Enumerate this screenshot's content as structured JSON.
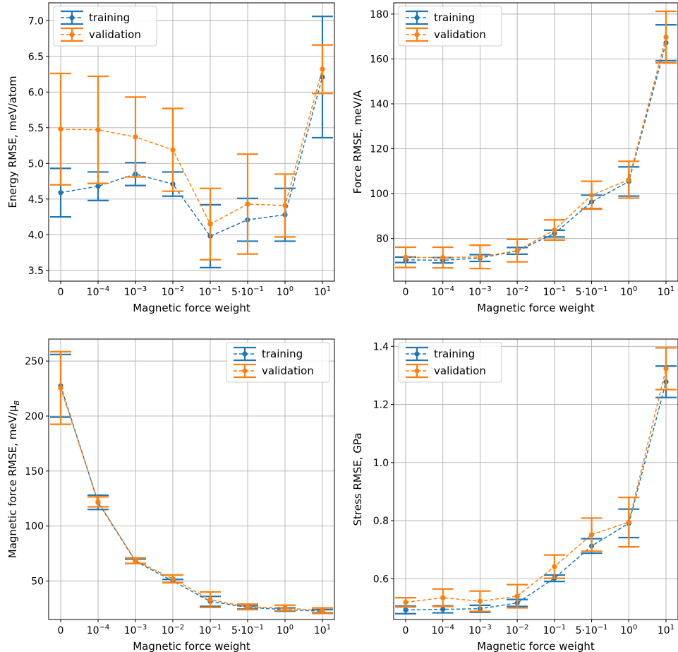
{
  "chart_data": [
    {
      "type": "line",
      "error_bars": true,
      "x_categories": [
        "0",
        "10^-4",
        "10^-3",
        "10^-2",
        "10^-1",
        "5·10^-1",
        "10^0",
        "10^1"
      ],
      "xlabel": "Magnetic force weight",
      "ylabel": "Energy RMSE, meV/atom",
      "ylim": [
        3.35,
        7.25
      ],
      "yticks": [
        3.5,
        4.0,
        4.5,
        5.0,
        5.5,
        6.0,
        6.5,
        7.0
      ],
      "ytick_labels": [
        "3.5",
        "4.0",
        "4.5",
        "5.0",
        "5.5",
        "6.0",
        "6.5",
        "7.0"
      ],
      "grid": true,
      "legend_position": "top-left",
      "series": [
        {
          "name": "training",
          "color": "#1f77b4",
          "values": [
            4.59,
            4.68,
            4.85,
            4.71,
            3.98,
            4.21,
            4.28,
            6.21
          ],
          "errors": [
            0.34,
            0.2,
            0.16,
            0.17,
            0.44,
            0.3,
            0.37,
            0.85
          ]
        },
        {
          "name": "validation",
          "color": "#ff7f0e",
          "values": [
            5.48,
            5.47,
            5.37,
            5.19,
            4.15,
            4.43,
            4.41,
            6.32
          ],
          "errors": [
            0.78,
            0.75,
            0.56,
            0.58,
            0.5,
            0.7,
            0.44,
            0.34
          ]
        }
      ]
    },
    {
      "type": "line",
      "error_bars": true,
      "x_categories": [
        "0",
        "10^-4",
        "10^-3",
        "10^-2",
        "10^-1",
        "5·10^-1",
        "10^0",
        "10^1"
      ],
      "xlabel": "Magnetic force weight",
      "ylabel": "Force RMSE, meV/A",
      "ylim": [
        61,
        185
      ],
      "yticks": [
        80,
        100,
        120,
        140,
        160,
        180
      ],
      "ytick_labels": [
        "80",
        "100",
        "120",
        "140",
        "160",
        "180"
      ],
      "grid": true,
      "legend_position": "top-left",
      "series": [
        {
          "name": "training",
          "color": "#1f77b4",
          "values": [
            70.5,
            70.3,
            71.3,
            74.5,
            82.2,
            96.3,
            105.4,
            167.2
          ],
          "errors": [
            1.2,
            1.2,
            1.5,
            1.5,
            1.5,
            3.0,
            6.5,
            8.0
          ]
        },
        {
          "name": "validation",
          "color": "#ff7f0e",
          "values": [
            71.6,
            71.5,
            71.8,
            74.6,
            83.8,
            99.3,
            106.2,
            169.7
          ],
          "errors": [
            4.5,
            4.6,
            5.2,
            5.0,
            4.5,
            6.2,
            8.2,
            11.5
          ]
        }
      ]
    },
    {
      "type": "line",
      "error_bars": true,
      "x_categories": [
        "0",
        "10^-4",
        "10^-3",
        "10^-2",
        "10^-1",
        "5·10^-1",
        "10^0",
        "10^1"
      ],
      "xlabel": "Magnetic force weight",
      "ylabel": "Magnetic force RMSE, meV/μB",
      "ylim": [
        15,
        270
      ],
      "yticks": [
        50,
        100,
        150,
        200,
        250
      ],
      "ytick_labels": [
        "50",
        "100",
        "150",
        "200",
        "250"
      ],
      "grid": true,
      "legend_position": "top-right",
      "series": [
        {
          "name": "training",
          "color": "#1f77b4",
          "values": [
            227.5,
            121.5,
            68.0,
            50.0,
            31.5,
            26.0,
            24.0,
            22.5
          ],
          "errors": [
            28.5,
            6.5,
            2.0,
            1.5,
            4.5,
            1.5,
            1.5,
            1.5
          ]
        },
        {
          "name": "validation",
          "color": "#ff7f0e",
          "values": [
            225.5,
            122.0,
            68.5,
            52.0,
            33.0,
            26.5,
            25.5,
            23.0
          ],
          "errors": [
            33.0,
            4.5,
            2.5,
            3.5,
            7.0,
            2.5,
            2.5,
            2.5
          ]
        }
      ]
    },
    {
      "type": "line",
      "error_bars": true,
      "x_categories": [
        "0",
        "10^-4",
        "10^-3",
        "10^-2",
        "10^-1",
        "5·10^-1",
        "10^0",
        "10^1"
      ],
      "xlabel": "Magnetic force weight",
      "ylabel": "Stress RMSE, GPa",
      "ylim": [
        0.46,
        1.425
      ],
      "yticks": [
        0.6,
        0.8,
        1.0,
        1.2,
        1.4
      ],
      "ytick_labels": [
        "0.6",
        "0.8",
        "1.0",
        "1.2",
        "1.4"
      ],
      "grid": true,
      "legend_position": "top-left",
      "series": [
        {
          "name": "training",
          "color": "#1f77b4",
          "values": [
            0.493,
            0.495,
            0.497,
            0.517,
            0.602,
            0.713,
            0.791,
            1.278
          ],
          "errors": [
            0.013,
            0.012,
            0.012,
            0.012,
            0.011,
            0.025,
            0.049,
            0.054
          ]
        },
        {
          "name": "validation",
          "color": "#ff7f0e",
          "values": [
            0.519,
            0.535,
            0.523,
            0.54,
            0.642,
            0.752,
            0.795,
            1.323
          ],
          "errors": [
            0.016,
            0.03,
            0.035,
            0.04,
            0.04,
            0.057,
            0.085,
            0.072
          ]
        }
      ]
    }
  ]
}
